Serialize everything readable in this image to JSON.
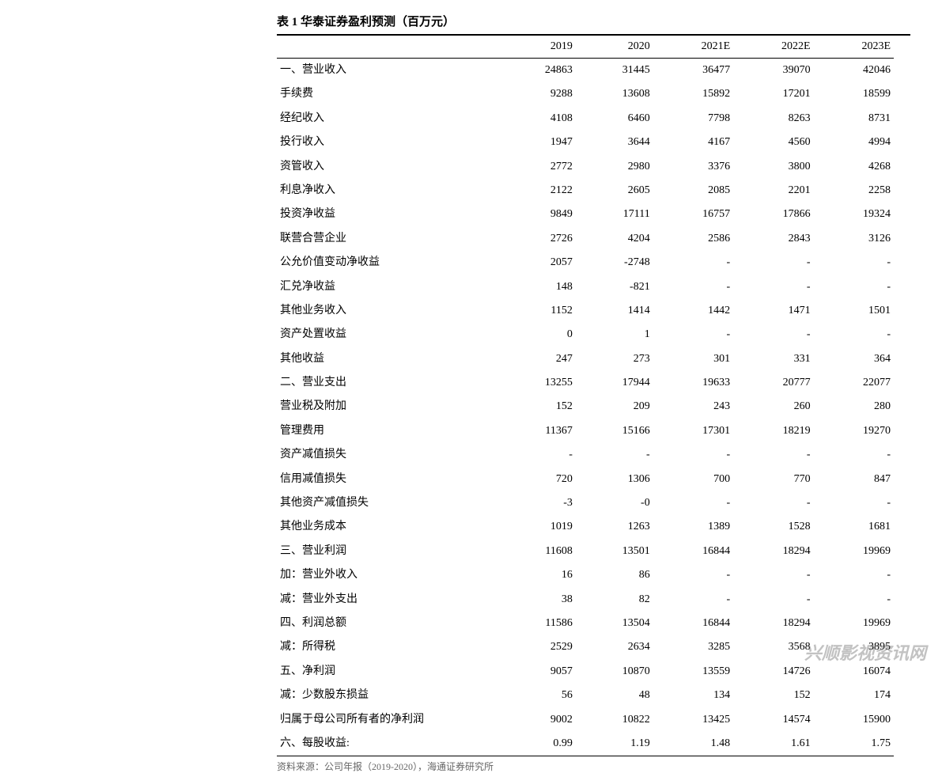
{
  "title": "表 1 华泰证券盈利预测（百万元）",
  "columns": [
    "",
    "2019",
    "2020",
    "2021E",
    "2022E",
    "2023E"
  ],
  "rows": [
    [
      "一、营业收入",
      "24863",
      "31445",
      "36477",
      "39070",
      "42046"
    ],
    [
      "手续费",
      "9288",
      "13608",
      "15892",
      "17201",
      "18599"
    ],
    [
      "经纪收入",
      "4108",
      "6460",
      "7798",
      "8263",
      "8731"
    ],
    [
      "投行收入",
      "1947",
      "3644",
      "4167",
      "4560",
      "4994"
    ],
    [
      "资管收入",
      "2772",
      "2980",
      "3376",
      "3800",
      "4268"
    ],
    [
      "利息净收入",
      "2122",
      "2605",
      "2085",
      "2201",
      "2258"
    ],
    [
      "投资净收益",
      "9849",
      "17111",
      "16757",
      "17866",
      "19324"
    ],
    [
      "联营合营企业",
      "2726",
      "4204",
      "2586",
      "2843",
      "3126"
    ],
    [
      "公允价值变动净收益",
      "2057",
      "-2748",
      "-",
      "-",
      "-"
    ],
    [
      "汇兑净收益",
      "148",
      "-821",
      "-",
      "-",
      "-"
    ],
    [
      "其他业务收入",
      "1152",
      "1414",
      "1442",
      "1471",
      "1501"
    ],
    [
      "资产处置收益",
      "0",
      "1",
      "-",
      "-",
      "-"
    ],
    [
      "其他收益",
      "247",
      "273",
      "301",
      "331",
      "364"
    ],
    [
      "二、营业支出",
      "13255",
      "17944",
      "19633",
      "20777",
      "22077"
    ],
    [
      "营业税及附加",
      "152",
      "209",
      "243",
      "260",
      "280"
    ],
    [
      "管理费用",
      "11367",
      "15166",
      "17301",
      "18219",
      "19270"
    ],
    [
      "资产减值损失",
      "-",
      "-",
      "-",
      "-",
      "-"
    ],
    [
      "信用减值损失",
      "720",
      "1306",
      "700",
      "770",
      "847"
    ],
    [
      "其他资产减值损失",
      "-3",
      "-0",
      "-",
      "-",
      "-"
    ],
    [
      "其他业务成本",
      "1019",
      "1263",
      "1389",
      "1528",
      "1681"
    ],
    [
      "三、营业利润",
      "11608",
      "13501",
      "16844",
      "18294",
      "19969"
    ],
    [
      "加：营业外收入",
      "16",
      "86",
      "-",
      "-",
      "-"
    ],
    [
      "减：营业外支出",
      "38",
      "82",
      "-",
      "-",
      "-"
    ],
    [
      "四、利润总额",
      "11586",
      "13504",
      "16844",
      "18294",
      "19969"
    ],
    [
      "减：所得税",
      "2529",
      "2634",
      "3285",
      "3568",
      "3895"
    ],
    [
      "五、净利润",
      "9057",
      "10870",
      "13559",
      "14726",
      "16074"
    ],
    [
      "减：少数股东损益",
      "56",
      "48",
      "134",
      "152",
      "174"
    ],
    [
      "归属于母公司所有者的净利润",
      "9002",
      "10822",
      "13425",
      "14574",
      "15900"
    ],
    [
      "六、每股收益:",
      "0.99",
      "1.19",
      "1.48",
      "1.61",
      "1.75"
    ]
  ],
  "footer": "资料来源：公司年报（2019-2020），海通证券研究所",
  "watermark": "兴顺影视资讯网"
}
